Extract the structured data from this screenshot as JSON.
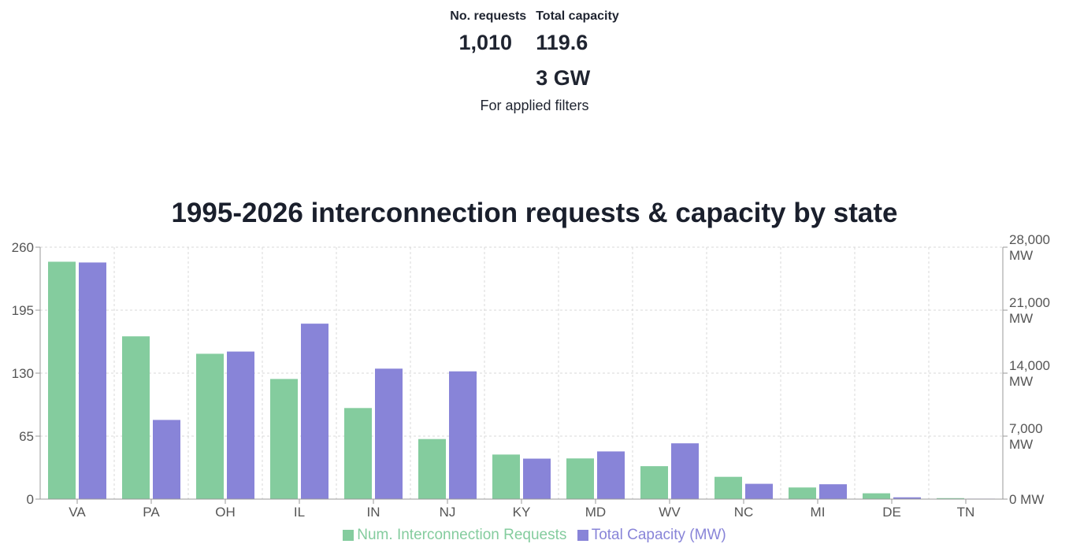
{
  "summary": {
    "requests_label": "No. requests",
    "requests_value": "1,010",
    "capacity_label": "Total capacity",
    "capacity_value": "119.63 GW",
    "note": "For applied filters"
  },
  "colors": {
    "requests": "#84cc9e",
    "capacity": "#8884d8",
    "grid": "#d9d9d9",
    "axis": "#999999"
  },
  "chart_data": {
    "type": "bar",
    "title": "1995-2026 interconnection requests & capacity by state",
    "categories": [
      "VA",
      "PA",
      "OH",
      "IL",
      "IN",
      "NJ",
      "KY",
      "MD",
      "WV",
      "NC",
      "MI",
      "DE",
      "TN"
    ],
    "series": [
      {
        "name": "Num. Interconnection Requests",
        "axis": "left",
        "values": [
          245,
          168,
          150,
          124,
          94,
          62,
          46,
          42,
          34,
          23,
          12,
          6,
          1
        ]
      },
      {
        "name": "Total Capacity (MW)",
        "axis": "right",
        "values": [
          26300,
          8800,
          16400,
          19500,
          14500,
          14200,
          4500,
          5300,
          6200,
          1700,
          1650,
          200,
          50
        ]
      }
    ],
    "left_axis": {
      "ylim": [
        0,
        260
      ],
      "ticks": [
        "0",
        "65",
        "130",
        "195",
        "260"
      ]
    },
    "right_axis": {
      "ylim": [
        0,
        28000
      ],
      "ticks": [
        "0 MW",
        "7,000 MW",
        "14,000 MW",
        "21,000 MW",
        "28,000 MW"
      ]
    },
    "grid": true,
    "legend_position": "bottom"
  }
}
